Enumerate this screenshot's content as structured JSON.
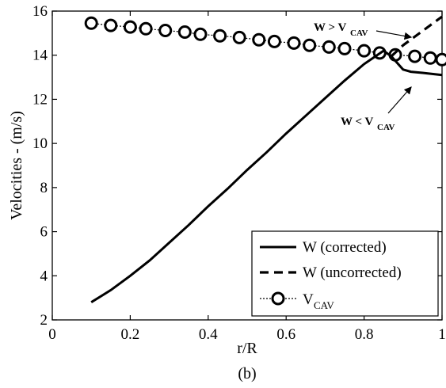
{
  "caption": "(b)",
  "chart_data": {
    "type": "line",
    "xlabel": "r/R",
    "ylabel": "Velocities - (m/s)",
    "xlim": [
      0,
      1
    ],
    "ylim": [
      2,
      16
    ],
    "x_ticks": [
      0,
      0.2,
      0.4,
      0.6,
      0.8,
      1
    ],
    "x_tick_labels": [
      "0",
      "0.2",
      "0.4",
      "0.6",
      "0.8",
      "1"
    ],
    "y_ticks": [
      2,
      4,
      6,
      8,
      10,
      12,
      14,
      16
    ],
    "y_tick_labels": [
      "2",
      "4",
      "6",
      "8",
      "10",
      "12",
      "14",
      "16"
    ],
    "grid": false,
    "legend_position": "bottom-right",
    "series": [
      {
        "name": "W (corrected)",
        "style": "solid",
        "color": "#000000",
        "x": [
          0.1,
          0.15,
          0.2,
          0.25,
          0.3,
          0.35,
          0.4,
          0.45,
          0.5,
          0.55,
          0.6,
          0.65,
          0.7,
          0.75,
          0.8,
          0.85,
          0.87,
          0.9,
          0.92,
          0.95,
          1.0
        ],
        "y": [
          2.8,
          3.35,
          4.0,
          4.7,
          5.5,
          6.3,
          7.15,
          7.95,
          8.8,
          9.6,
          10.45,
          11.25,
          12.05,
          12.85,
          13.6,
          14.2,
          13.95,
          13.35,
          13.25,
          13.2,
          13.1
        ]
      },
      {
        "name": "W (uncorrected)",
        "style": "dashed",
        "color": "#000000",
        "x": [
          0.87,
          0.9,
          0.95,
          1.0
        ],
        "y": [
          13.95,
          14.45,
          15.1,
          15.75
        ]
      },
      {
        "name": "V",
        "name_subscript": "CAV",
        "style": "dotted-circles",
        "color": "#000000",
        "x": [
          0.1,
          0.15,
          0.2,
          0.24,
          0.29,
          0.34,
          0.38,
          0.43,
          0.48,
          0.53,
          0.57,
          0.62,
          0.66,
          0.71,
          0.75,
          0.8,
          0.84,
          0.88,
          0.93,
          0.97,
          1.0
        ],
        "y": [
          15.45,
          15.35,
          15.28,
          15.2,
          15.12,
          15.05,
          14.95,
          14.88,
          14.8,
          14.7,
          14.62,
          14.55,
          14.45,
          14.37,
          14.3,
          14.2,
          14.1,
          14.02,
          13.95,
          13.87,
          13.8
        ]
      }
    ],
    "annotations": [
      {
        "text": "W > V",
        "subscript": "CAV",
        "arrow_to": [
          0.92,
          14.45
        ]
      },
      {
        "text": "W < V",
        "subscript": "CAV",
        "arrow_to": [
          0.93,
          13.4
        ]
      }
    ]
  }
}
